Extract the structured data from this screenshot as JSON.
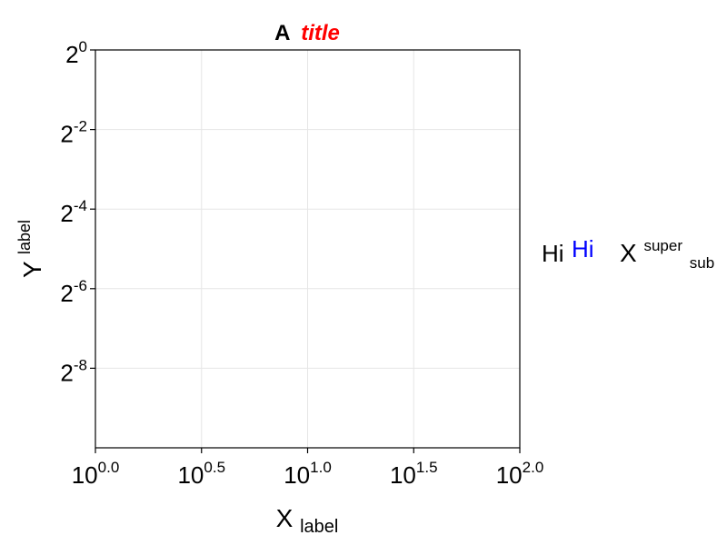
{
  "chart_data": {
    "type": "line",
    "title": {
      "prefix": "A",
      "emphasis": "title",
      "emphasis_color": "#ff0000"
    },
    "xlabel": {
      "base": "X",
      "sub": "label"
    },
    "ylabel": {
      "base": "Y",
      "sup": "label"
    },
    "x_scale": "log10",
    "y_scale": "log2",
    "xlim_exponents": [
      0.0,
      2.0
    ],
    "ylim_exponents": [
      -10.0,
      0.0
    ],
    "x_ticks": [
      {
        "base": "10",
        "exp": "0.0",
        "value": 0.0
      },
      {
        "base": "10",
        "exp": "0.5",
        "value": 0.5
      },
      {
        "base": "10",
        "exp": "1.0",
        "value": 1.0
      },
      {
        "base": "10",
        "exp": "1.5",
        "value": 1.5
      },
      {
        "base": "10",
        "exp": "2.0",
        "value": 2.0
      }
    ],
    "y_ticks": [
      {
        "base": "2",
        "exp": "0",
        "value": 0
      },
      {
        "base": "2",
        "exp": "-2",
        "value": -2
      },
      {
        "base": "2",
        "exp": "-4",
        "value": -4
      },
      {
        "base": "2",
        "exp": "-6",
        "value": -6
      },
      {
        "base": "2",
        "exp": "-8",
        "value": -8
      }
    ],
    "grid": true,
    "series": [],
    "annotations": [
      {
        "text": "Hi",
        "color": "#000000"
      },
      {
        "text": "Hi",
        "color": "#0000ff"
      },
      {
        "base": "X",
        "sup": "super",
        "sub": "sub",
        "color": "#000000"
      }
    ],
    "colors": {
      "axis": "#000000",
      "grid": "#e6e6e6",
      "background": "#ffffff"
    }
  }
}
